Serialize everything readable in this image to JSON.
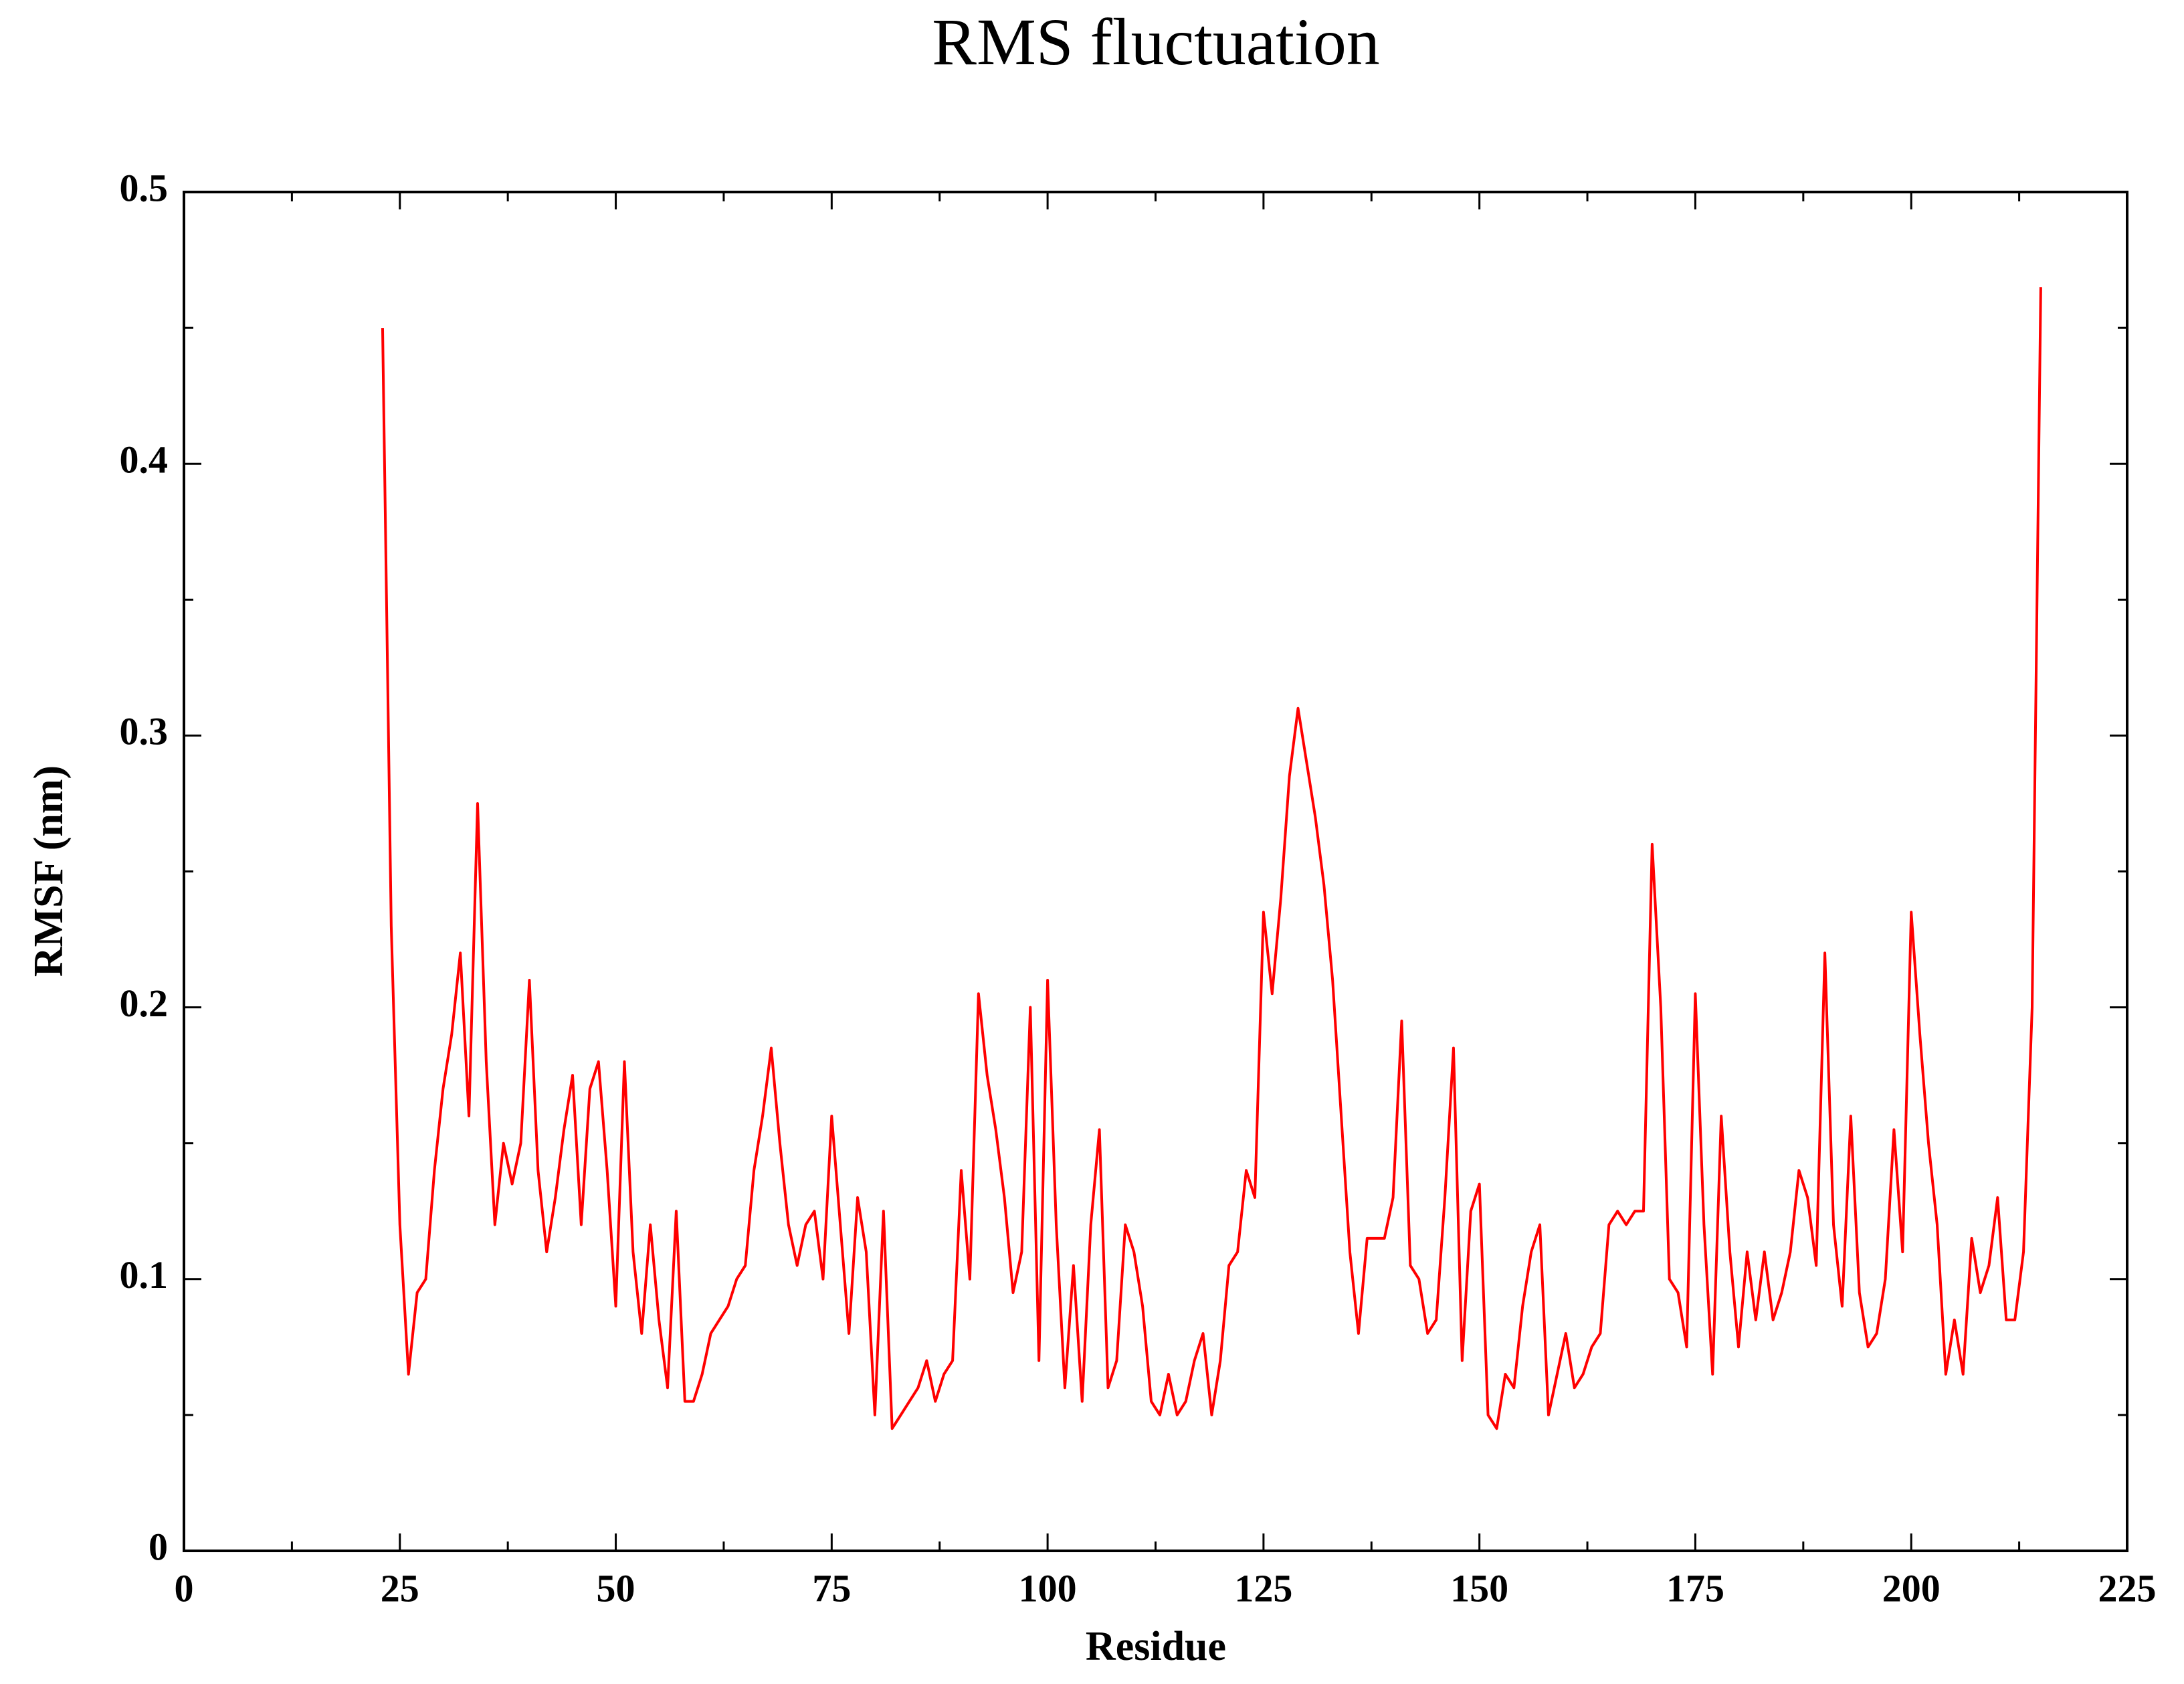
{
  "chart_data": {
    "type": "line",
    "title": "RMS fluctuation",
    "x_label": "Residue",
    "y_label": "RMSF (nm)",
    "xlim": [
      0,
      225
    ],
    "xticks": [
      0,
      25,
      50,
      75,
      100,
      125,
      150,
      175,
      200,
      225
    ],
    "ylim": [
      0,
      0.5
    ],
    "yticks": [
      0,
      0.1,
      0.2,
      0.3,
      0.4,
      0.5
    ],
    "series": [
      {
        "color": "#ff0000",
        "x": [
          23,
          24,
          25,
          26,
          27,
          28,
          29,
          30,
          31,
          32,
          33,
          34,
          35,
          36,
          37,
          38,
          39,
          40,
          41,
          42,
          43,
          44,
          45,
          46,
          47,
          48,
          49,
          50,
          51,
          52,
          53,
          54,
          55,
          56,
          57,
          58,
          59,
          60,
          61,
          62,
          63,
          64,
          65,
          66,
          67,
          68,
          69,
          70,
          71,
          72,
          73,
          74,
          75,
          76,
          77,
          78,
          79,
          80,
          81,
          82,
          83,
          84,
          85,
          86,
          87,
          88,
          89,
          90,
          91,
          92,
          93,
          94,
          95,
          96,
          97,
          98,
          99,
          100,
          101,
          102,
          103,
          104,
          105,
          106,
          107,
          108,
          109,
          110,
          111,
          112,
          113,
          114,
          115,
          116,
          117,
          118,
          119,
          120,
          121,
          122,
          123,
          124,
          125,
          126,
          127,
          128,
          129,
          130,
          131,
          132,
          133,
          134,
          135,
          136,
          137,
          138,
          139,
          140,
          141,
          142,
          143,
          144,
          145,
          146,
          147,
          148,
          149,
          150,
          151,
          152,
          153,
          154,
          155,
          156,
          157,
          158,
          159,
          160,
          161,
          162,
          163,
          164,
          165,
          166,
          167,
          168,
          169,
          170,
          171,
          172,
          173,
          174,
          175,
          176,
          177,
          178,
          179,
          180,
          181,
          182,
          183,
          184,
          185,
          186,
          187,
          188,
          189,
          190,
          191,
          192,
          193,
          194,
          195,
          196,
          197,
          198,
          199,
          200,
          201,
          202,
          203,
          204,
          205,
          206,
          207,
          208,
          209,
          210,
          211,
          212,
          213,
          214,
          215
        ],
        "values": [
          0.45,
          0.23,
          0.12,
          0.065,
          0.095,
          0.1,
          0.14,
          0.17,
          0.19,
          0.22,
          0.16,
          0.275,
          0.18,
          0.12,
          0.15,
          0.135,
          0.15,
          0.21,
          0.14,
          0.11,
          0.13,
          0.155,
          0.175,
          0.12,
          0.17,
          0.18,
          0.14,
          0.09,
          0.18,
          0.11,
          0.08,
          0.12,
          0.085,
          0.06,
          0.125,
          0.055,
          0.055,
          0.065,
          0.08,
          0.085,
          0.09,
          0.1,
          0.105,
          0.14,
          0.16,
          0.185,
          0.15,
          0.12,
          0.105,
          0.12,
          0.125,
          0.1,
          0.16,
          0.12,
          0.08,
          0.13,
          0.11,
          0.05,
          0.125,
          0.045,
          0.05,
          0.055,
          0.06,
          0.07,
          0.055,
          0.065,
          0.07,
          0.14,
          0.1,
          0.205,
          0.175,
          0.155,
          0.13,
          0.095,
          0.11,
          0.2,
          0.07,
          0.21,
          0.12,
          0.06,
          0.105,
          0.055,
          0.12,
          0.155,
          0.06,
          0.07,
          0.12,
          0.11,
          0.09,
          0.055,
          0.05,
          0.065,
          0.05,
          0.055,
          0.07,
          0.08,
          0.05,
          0.07,
          0.105,
          0.11,
          0.14,
          0.13,
          0.235,
          0.205,
          0.24,
          0.285,
          0.31,
          0.29,
          0.27,
          0.245,
          0.21,
          0.16,
          0.11,
          0.08,
          0.115,
          0.115,
          0.115,
          0.13,
          0.195,
          0.105,
          0.1,
          0.08,
          0.085,
          0.13,
          0.185,
          0.07,
          0.125,
          0.135,
          0.05,
          0.045,
          0.065,
          0.06,
          0.09,
          0.11,
          0.12,
          0.05,
          0.065,
          0.08,
          0.06,
          0.065,
          0.075,
          0.08,
          0.12,
          0.125,
          0.12,
          0.125,
          0.125,
          0.26,
          0.2,
          0.1,
          0.095,
          0.075,
          0.205,
          0.12,
          0.065,
          0.16,
          0.11,
          0.075,
          0.11,
          0.085,
          0.11,
          0.085,
          0.095,
          0.11,
          0.14,
          0.13,
          0.105,
          0.22,
          0.12,
          0.09,
          0.16,
          0.095,
          0.075,
          0.08,
          0.1,
          0.155,
          0.11,
          0.235,
          0.19,
          0.15,
          0.12,
          0.065,
          0.085,
          0.065,
          0.115,
          0.095,
          0.105,
          0.13,
          0.085,
          0.085,
          0.11,
          0.2,
          0.465
        ]
      }
    ]
  }
}
